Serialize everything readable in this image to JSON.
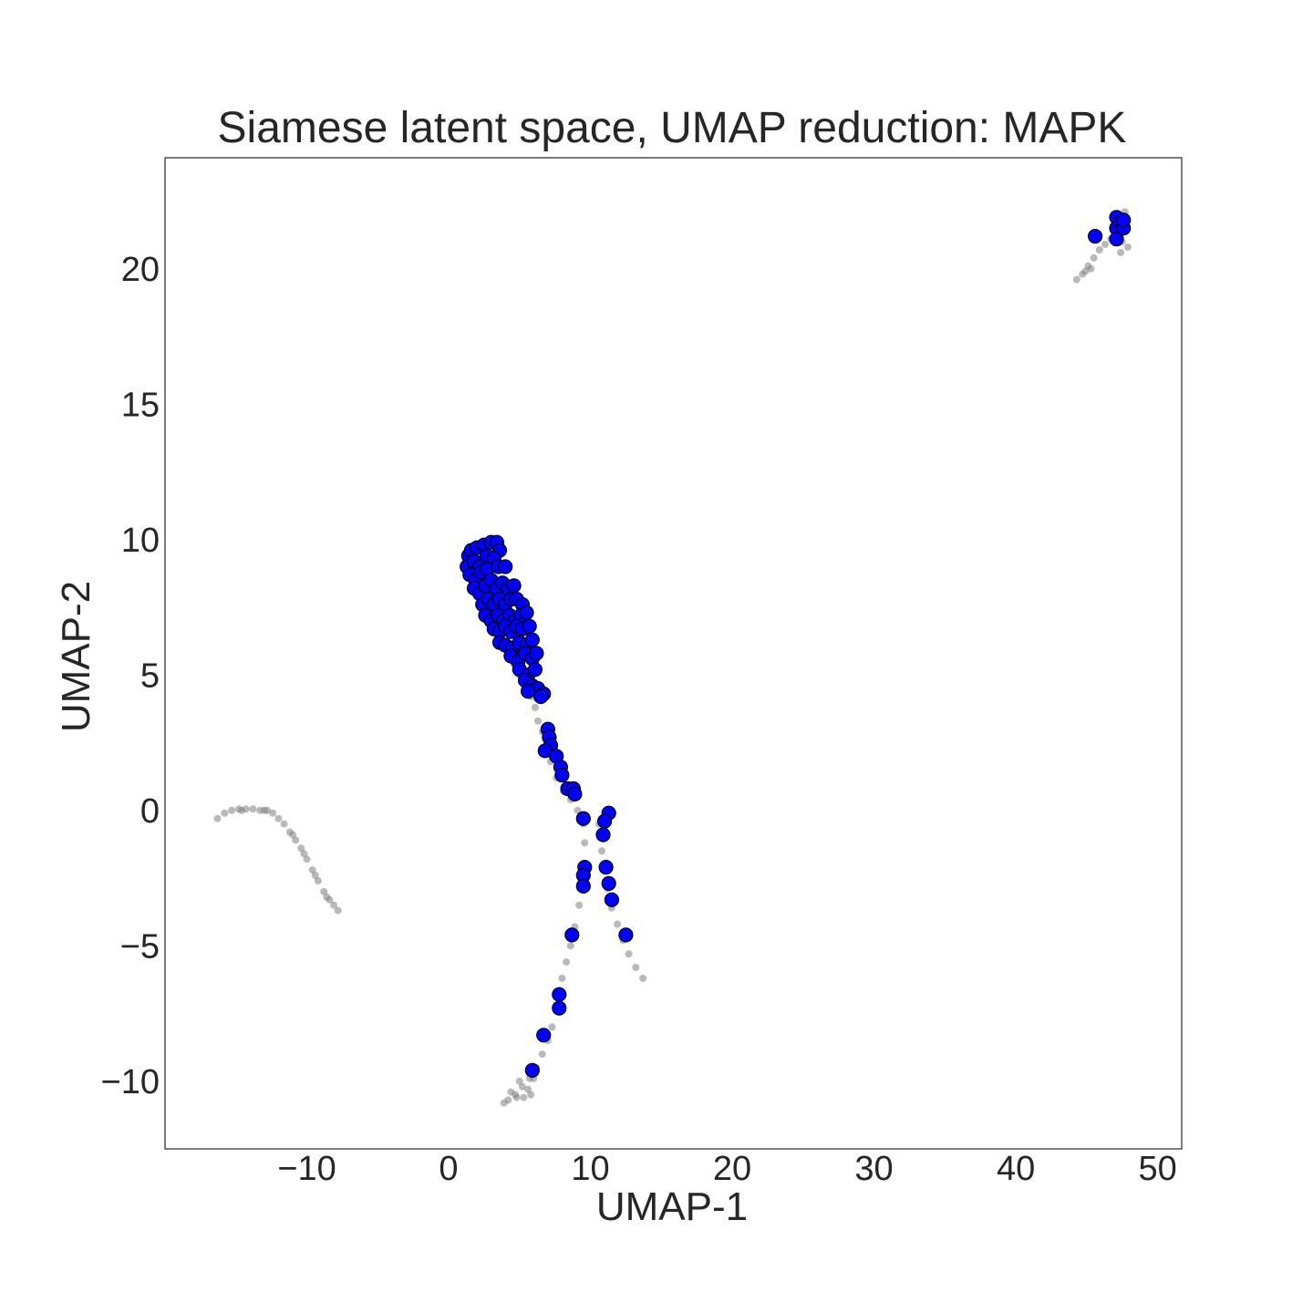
{
  "chart_data": {
    "type": "scatter",
    "title": "Siamese latent space, UMAP reduction: MAPK",
    "xlabel": "UMAP-1",
    "ylabel": "UMAP-2",
    "xlim": [
      -20,
      51.7
    ],
    "ylim": [
      -12.5,
      24.1
    ],
    "x_ticks": [
      -10,
      0,
      10,
      20,
      30,
      40,
      50
    ],
    "x_tick_labels": [
      "−10",
      "0",
      "10",
      "20",
      "30",
      "40",
      "50"
    ],
    "y_ticks": [
      -10,
      -5,
      0,
      5,
      10,
      15,
      20
    ],
    "y_tick_labels": [
      "−10",
      "−5",
      "0",
      "5",
      "10",
      "15",
      "20"
    ],
    "grid": false,
    "colors": {
      "background": "#ffffff",
      "highlight": "#0000ff",
      "highlight_edge": "#000000",
      "background_points": "#808080"
    },
    "series": [
      {
        "role": "background",
        "color": "#808080",
        "points": [
          [
            -16.3,
            -0.3
          ],
          [
            -15.8,
            -0.1
          ],
          [
            -15.3,
            0.0
          ],
          [
            -14.8,
            0.05
          ],
          [
            -14.3,
            0.05
          ],
          [
            -13.8,
            0.05
          ],
          [
            -13.3,
            0.0
          ],
          [
            -12.8,
            0.0
          ],
          [
            -12.4,
            -0.1
          ],
          [
            -12.0,
            -0.3
          ],
          [
            -11.6,
            -0.5
          ],
          [
            -11.2,
            -0.8
          ],
          [
            -10.8,
            -1.1
          ],
          [
            -10.4,
            -1.4
          ],
          [
            -10.0,
            -1.8
          ],
          [
            -9.6,
            -2.2
          ],
          [
            -9.2,
            -2.6
          ],
          [
            -8.8,
            -3.0
          ],
          [
            -8.4,
            -3.3
          ],
          [
            -8.1,
            -3.5
          ],
          [
            -7.8,
            -3.7
          ],
          [
            -11.0,
            -0.9
          ],
          [
            -9.4,
            -2.4
          ],
          [
            -13.0,
            0.0
          ],
          [
            -14.6,
            0.0
          ],
          [
            -10.2,
            -1.6
          ],
          [
            -8.6,
            -3.2
          ],
          [
            1.3,
            9.2
          ],
          [
            1.5,
            8.9
          ],
          [
            1.8,
            8.6
          ],
          [
            2.1,
            8.2
          ],
          [
            2.4,
            7.8
          ],
          [
            2.7,
            7.4
          ],
          [
            3.0,
            7.0
          ],
          [
            3.3,
            6.6
          ],
          [
            3.7,
            6.2
          ],
          [
            4.2,
            5.8
          ],
          [
            4.6,
            5.4
          ],
          [
            5.0,
            5.0
          ],
          [
            5.4,
            4.6
          ],
          [
            5.8,
            4.2
          ],
          [
            6.1,
            3.8
          ],
          [
            6.3,
            3.3
          ],
          [
            6.6,
            2.9
          ],
          [
            6.9,
            2.4
          ],
          [
            7.2,
            1.8
          ],
          [
            7.6,
            1.2
          ],
          [
            8.1,
            0.7
          ],
          [
            8.6,
            0.4
          ],
          [
            9.1,
            0.0
          ],
          [
            9.5,
            -0.5
          ],
          [
            9.6,
            -1.2
          ],
          [
            9.6,
            -2.0
          ],
          [
            9.4,
            -2.8
          ],
          [
            9.2,
            -3.5
          ],
          [
            8.9,
            -4.3
          ],
          [
            8.6,
            -5.0
          ],
          [
            8.3,
            -5.6
          ],
          [
            8.0,
            -6.2
          ],
          [
            7.8,
            -6.8
          ],
          [
            7.6,
            -7.4
          ],
          [
            7.3,
            -8.0
          ],
          [
            7.0,
            -8.5
          ],
          [
            6.6,
            -9.0
          ],
          [
            6.2,
            -9.5
          ],
          [
            5.7,
            -9.9
          ],
          [
            5.2,
            -10.2
          ],
          [
            4.7,
            -10.5
          ],
          [
            4.2,
            -10.7
          ],
          [
            3.9,
            -10.8
          ],
          [
            4.4,
            -10.4
          ],
          [
            5.0,
            -10.0
          ],
          [
            5.6,
            -10.3
          ],
          [
            5.3,
            -10.6
          ],
          [
            4.8,
            -10.6
          ],
          [
            6.0,
            -9.9
          ],
          [
            5.8,
            -10.5
          ],
          [
            11.2,
            -0.2
          ],
          [
            11.0,
            -0.8
          ],
          [
            10.8,
            -1.5
          ],
          [
            10.9,
            -2.2
          ],
          [
            11.2,
            -2.9
          ],
          [
            11.5,
            -3.6
          ],
          [
            11.9,
            -4.2
          ],
          [
            12.3,
            -4.8
          ],
          [
            12.7,
            -5.3
          ],
          [
            13.2,
            -5.8
          ],
          [
            13.7,
            -6.2
          ],
          [
            10.6,
            -0.5
          ],
          [
            11.3,
            -3.3
          ],
          [
            44.3,
            19.6
          ],
          [
            44.7,
            19.8
          ],
          [
            45.1,
            20.1
          ],
          [
            45.5,
            20.4
          ],
          [
            45.9,
            20.7
          ],
          [
            46.3,
            20.9
          ],
          [
            46.7,
            21.1
          ],
          [
            47.1,
            21.3
          ],
          [
            47.5,
            21.0
          ],
          [
            47.8,
            21.4
          ],
          [
            47.6,
            21.8
          ],
          [
            47.3,
            22.0
          ],
          [
            47.9,
            20.8
          ],
          [
            47.4,
            20.6
          ],
          [
            46.9,
            21.6
          ],
          [
            47.7,
            22.1
          ],
          [
            45.3,
            20.0
          ],
          [
            44.9,
            19.9
          ]
        ]
      },
      {
        "role": "highlight",
        "color": "#0000ff",
        "points": [
          [
            1.4,
            9.4
          ],
          [
            1.3,
            9.0
          ],
          [
            1.6,
            9.6
          ],
          [
            2.0,
            9.7
          ],
          [
            2.5,
            9.8
          ],
          [
            3.0,
            9.9
          ],
          [
            3.4,
            9.9
          ],
          [
            3.6,
            9.6
          ],
          [
            1.8,
            9.2
          ],
          [
            2.2,
            9.0
          ],
          [
            2.7,
            9.4
          ],
          [
            3.2,
            9.3
          ],
          [
            1.5,
            8.7
          ],
          [
            1.9,
            8.5
          ],
          [
            2.3,
            8.8
          ],
          [
            2.7,
            8.9
          ],
          [
            3.5,
            9.0
          ],
          [
            4.0,
            9.0
          ],
          [
            1.8,
            8.2
          ],
          [
            2.2,
            8.0
          ],
          [
            2.6,
            8.3
          ],
          [
            3.0,
            8.5
          ],
          [
            3.4,
            8.2
          ],
          [
            3.8,
            8.4
          ],
          [
            4.2,
            8.2
          ],
          [
            4.6,
            8.3
          ],
          [
            2.4,
            7.6
          ],
          [
            2.8,
            7.8
          ],
          [
            3.2,
            7.6
          ],
          [
            3.6,
            7.8
          ],
          [
            4.0,
            7.6
          ],
          [
            4.4,
            7.8
          ],
          [
            4.8,
            7.8
          ],
          [
            5.2,
            7.6
          ],
          [
            2.6,
            7.2
          ],
          [
            3.0,
            7.0
          ],
          [
            3.5,
            7.2
          ],
          [
            3.9,
            7.0
          ],
          [
            4.3,
            7.2
          ],
          [
            4.7,
            7.0
          ],
          [
            5.1,
            7.2
          ],
          [
            5.5,
            7.3
          ],
          [
            3.2,
            6.7
          ],
          [
            3.6,
            6.6
          ],
          [
            4.0,
            6.8
          ],
          [
            4.4,
            6.6
          ],
          [
            4.8,
            6.8
          ],
          [
            5.2,
            6.7
          ],
          [
            5.7,
            6.8
          ],
          [
            3.6,
            6.2
          ],
          [
            4.0,
            6.1
          ],
          [
            4.5,
            6.0
          ],
          [
            5.0,
            6.2
          ],
          [
            5.5,
            6.1
          ],
          [
            5.9,
            6.3
          ],
          [
            4.4,
            5.7
          ],
          [
            4.9,
            5.5
          ],
          [
            5.4,
            5.8
          ],
          [
            5.9,
            5.6
          ],
          [
            6.2,
            5.8
          ],
          [
            5.0,
            5.2
          ],
          [
            5.6,
            5.0
          ],
          [
            6.1,
            5.2
          ],
          [
            5.4,
            4.8
          ],
          [
            5.9,
            4.6
          ],
          [
            6.3,
            4.5
          ],
          [
            5.6,
            4.4
          ],
          [
            6.7,
            4.3
          ],
          [
            6.5,
            4.2
          ],
          [
            7.0,
            3.0
          ],
          [
            7.1,
            2.7
          ],
          [
            7.2,
            2.4
          ],
          [
            6.8,
            2.2
          ],
          [
            7.6,
            2.0
          ],
          [
            7.9,
            1.6
          ],
          [
            8.0,
            1.3
          ],
          [
            8.4,
            0.8
          ],
          [
            8.8,
            0.8
          ],
          [
            8.9,
            0.6
          ],
          [
            9.5,
            -0.3
          ],
          [
            9.6,
            -2.1
          ],
          [
            9.5,
            -2.4
          ],
          [
            9.5,
            -2.8
          ],
          [
            8.7,
            -4.6
          ],
          [
            7.8,
            -6.8
          ],
          [
            7.8,
            -7.3
          ],
          [
            6.7,
            -8.3
          ],
          [
            5.9,
            -9.6
          ],
          [
            11.3,
            -0.1
          ],
          [
            11.0,
            -0.4
          ],
          [
            10.9,
            -0.9
          ],
          [
            11.1,
            -2.1
          ],
          [
            11.3,
            -2.7
          ],
          [
            11.5,
            -3.3
          ],
          [
            12.5,
            -4.6
          ],
          [
            45.6,
            21.2
          ],
          [
            47.1,
            21.9
          ],
          [
            47.1,
            21.5
          ],
          [
            47.4,
            21.7
          ],
          [
            47.6,
            21.5
          ],
          [
            47.6,
            21.8
          ],
          [
            47.1,
            21.1
          ]
        ]
      }
    ]
  }
}
